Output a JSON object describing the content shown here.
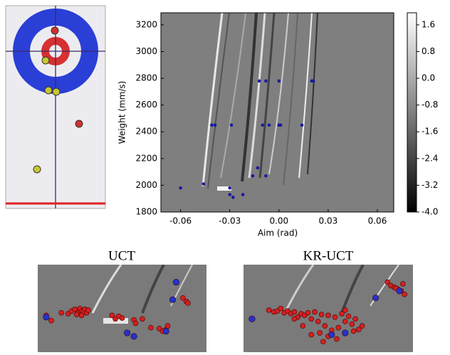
{
  "chart_data": [
    {
      "type": "scatter",
      "x_label": "Aim (rad)",
      "y_label": "Weight (mm/s)",
      "xlim": [
        -0.072,
        0.07
      ],
      "ylim": [
        1800,
        3290
      ],
      "xticks": [
        {
          "value": -0.06,
          "label": "-0.06"
        },
        {
          "value": -0.03,
          "label": "-0.03"
        },
        {
          "value": 0,
          "label": "0.00"
        },
        {
          "value": 0.03,
          "label": "0.03"
        },
        {
          "value": 0.06,
          "label": "0.06"
        }
      ],
      "yticks": [
        1800,
        2000,
        2200,
        2400,
        2600,
        2800,
        3000,
        3200
      ],
      "colorbar": {
        "lim": [
          -4.0,
          1.96
        ],
        "ticks": [
          {
            "value": 1.6,
            "label": "1.6"
          },
          {
            "value": 0.8,
            "label": "0.8"
          },
          {
            "value": 0,
            "label": "0.0"
          },
          {
            "value": -0.8,
            "label": "-0.8"
          },
          {
            "value": -1.6,
            "label": "-1.6"
          },
          {
            "value": -2.4,
            "label": "-2.4"
          },
          {
            "value": -3.2,
            "label": "-3.2"
          },
          {
            "value": -4.0,
            "label": "-4.0"
          }
        ]
      },
      "series": [
        {
          "color": "#1a1aa0",
          "x": [
            -0.06,
            -0.046,
            -0.041,
            -0.039,
            -0.029,
            -0.03,
            -0.03,
            -0.028,
            -0.022,
            -0.016,
            -0.013,
            -0.012,
            -0.01,
            -0.008,
            -0.008,
            -0.006,
            0.0,
            0.0,
            0.001,
            0.014,
            0.02,
            0.021
          ],
          "values": [
            1980,
            2010,
            2450,
            2450,
            2450,
            1980,
            1930,
            1910,
            1930,
            2070,
            2130,
            2780,
            2450,
            2780,
            2070,
            2450,
            2450,
            2780,
            2450,
            2450,
            2780,
            2780
          ]
        }
      ]
    },
    {
      "type": "scatter",
      "title": "UCT",
      "xlim": [
        0,
        100
      ],
      "ylim": [
        0,
        100
      ],
      "series": [
        {
          "color": "#d42020",
          "x": [
            5,
            8,
            14,
            18,
            20,
            22,
            24,
            25,
            26,
            27,
            28,
            29,
            30,
            23,
            26,
            44,
            46,
            48,
            50,
            57,
            58,
            62,
            67,
            72,
            74,
            76,
            77,
            80,
            86,
            88,
            89
          ],
          "values": [
            42,
            36,
            45,
            44,
            47,
            49,
            45,
            50,
            47,
            46,
            49,
            45,
            48,
            43,
            42,
            42,
            38,
            41,
            39,
            37,
            33,
            38,
            28,
            27,
            24,
            26,
            30,
            60,
            62,
            58,
            56
          ]
        },
        {
          "color": "#2233cc",
          "x": [
            5,
            53,
            57,
            76,
            80,
            82
          ],
          "values": [
            40,
            22,
            18,
            24,
            60,
            80
          ]
        }
      ]
    },
    {
      "type": "scatter",
      "title": "KR-UCT",
      "xlim": [
        0,
        100
      ],
      "ylim": [
        0,
        100
      ],
      "series": [
        {
          "color": "#d42020",
          "x": [
            15,
            18,
            20,
            22,
            24,
            26,
            28,
            30,
            32,
            34,
            36,
            38,
            40,
            42,
            44,
            46,
            48,
            50,
            52,
            54,
            56,
            58,
            60,
            62,
            64,
            66,
            68,
            70,
            40,
            45,
            50,
            55,
            35,
            60,
            65,
            85,
            87,
            89,
            91,
            93,
            95,
            94,
            90,
            30,
            47
          ],
          "values": [
            48,
            46,
            47,
            50,
            45,
            47,
            44,
            46,
            40,
            44,
            42,
            45,
            38,
            46,
            35,
            43,
            30,
            42,
            25,
            40,
            28,
            44,
            35,
            41,
            32,
            38,
            26,
            30,
            20,
            22,
            18,
            15,
            30,
            48,
            24,
            80,
            76,
            74,
            72,
            70,
            66,
            78,
            73,
            38,
            12
          ]
        },
        {
          "color": "#2233cc",
          "x": [
            5,
            52,
            60,
            78,
            92
          ],
          "values": [
            38,
            20,
            22,
            62,
            70
          ]
        }
      ]
    }
  ]
}
